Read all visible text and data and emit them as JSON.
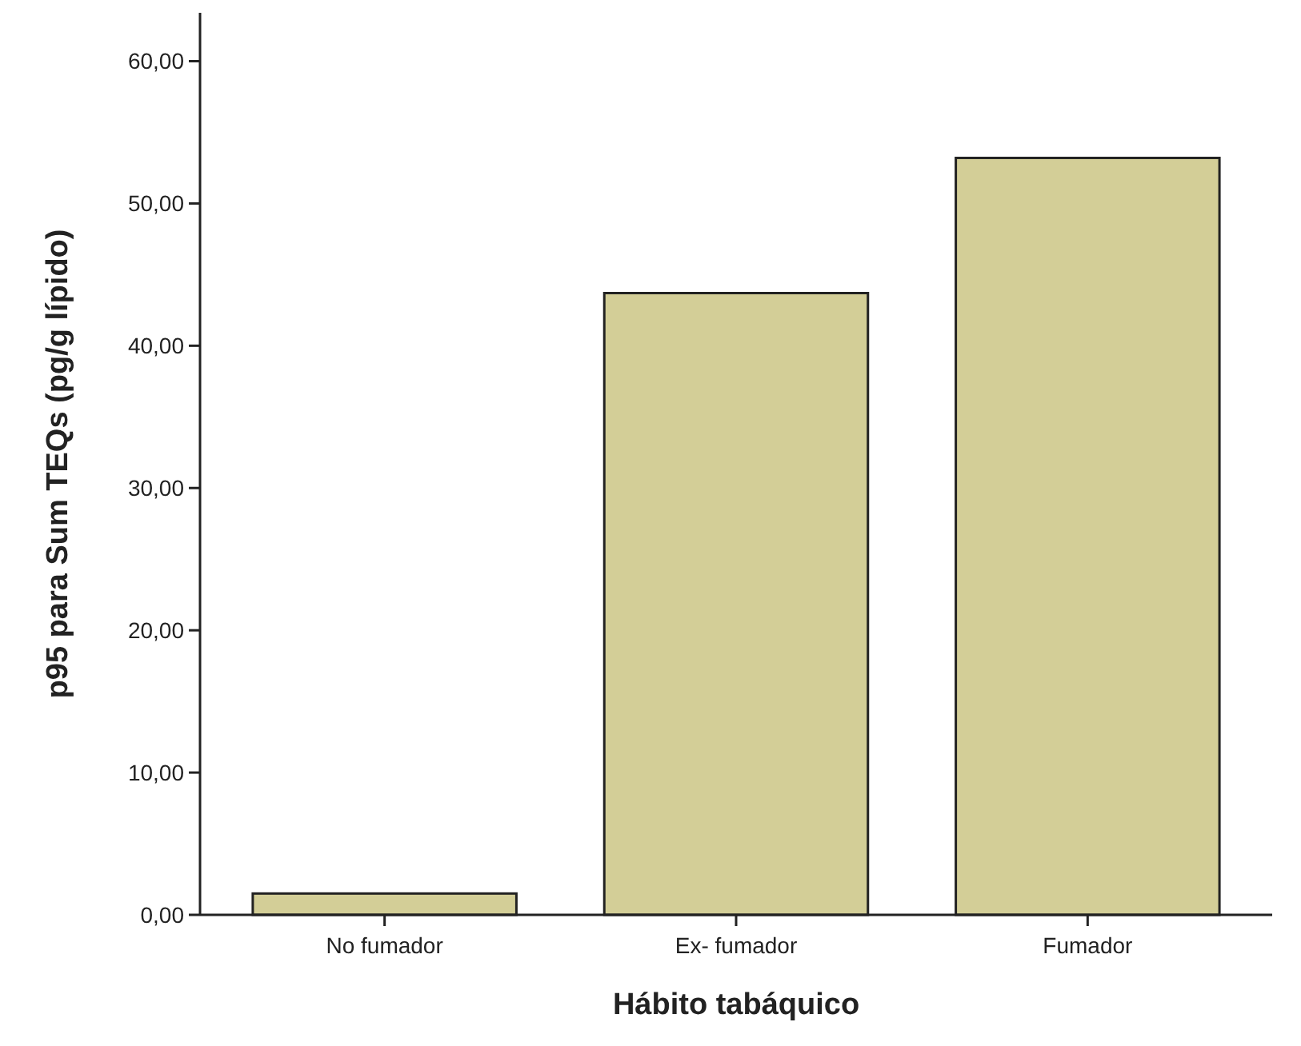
{
  "chart_data": {
    "type": "bar",
    "xlabel": "Hábito tabáquico",
    "ylabel": "p95 para Sum TEQs (pg/g lípido)",
    "categories": [
      "No fumador",
      "Ex- fumador",
      "Fumador"
    ],
    "values": [
      1.5,
      43.7,
      53.2
    ],
    "color": "#d3ce97",
    "ylim": [
      0,
      63.4
    ],
    "yticks": [
      {
        "value": 0,
        "label": "0,00"
      },
      {
        "value": 10,
        "label": "10,00"
      },
      {
        "value": 20,
        "label": "20,00"
      },
      {
        "value": 30,
        "label": "30,00"
      },
      {
        "value": 40,
        "label": "40,00"
      },
      {
        "value": 50,
        "label": "50,00"
      },
      {
        "value": 60,
        "label": "60,00"
      }
    ],
    "grid": false
  }
}
